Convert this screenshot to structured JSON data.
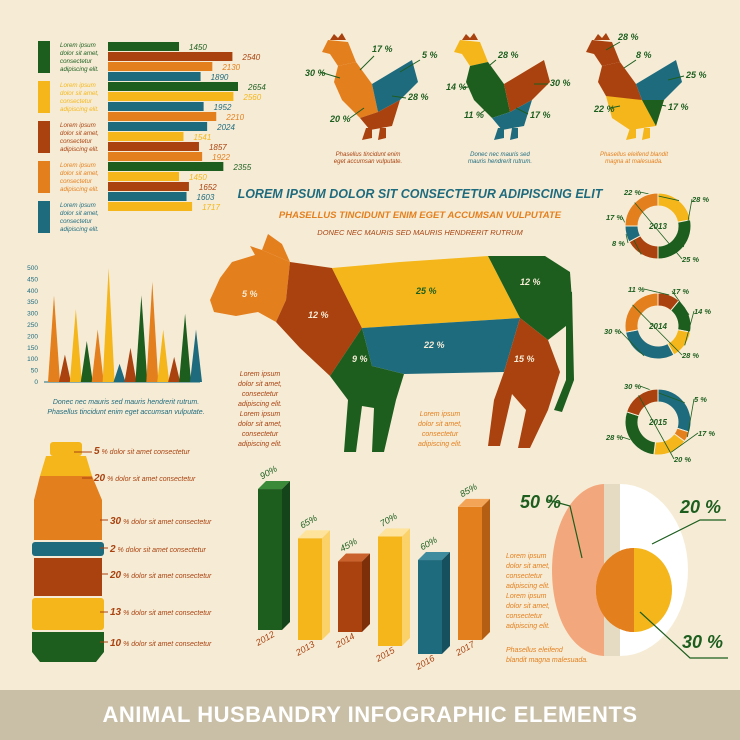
{
  "colors": {
    "green": "#1d5e1f",
    "yellow": "#f4b61b",
    "orange": "#e47f1d",
    "red": "#a9420f",
    "teal": "#1f6b7e",
    "bg": "#f6ecd6",
    "footer": "#c9bfa6"
  },
  "footer_title": "ANIMAL HUSBANDRY INFOGRAPHIC ELEMENTS",
  "headline": {
    "main": "LOREM IPSUM DOLOR SIT CONSECTETUR ADIPISCING ELIT",
    "sub1": "PHASELLUS TINCIDUNT ENIM EGET ACCUMSAN VULPUTATE",
    "sub2": "DONEC NEC MAURIS SED  MAURIS HENDRERIT RUTRUM"
  },
  "bar_groups": {
    "legend_text": [
      "Lorem ipsum",
      "dolor sit amet,",
      "consectetur",
      "adipiscing elit."
    ],
    "groups": [
      {
        "color": "green",
        "bars": [
          {
            "value": 1450,
            "color": "green"
          },
          {
            "value": 2540,
            "color": "red"
          },
          {
            "value": 2130,
            "color": "orange"
          },
          {
            "value": 1890,
            "color": "teal"
          }
        ]
      },
      {
        "color": "yellow",
        "bars": [
          {
            "value": 2654,
            "color": "green"
          },
          {
            "value": 2560,
            "color": "yellow"
          },
          {
            "value": 1952,
            "color": "teal"
          },
          {
            "value": 2210,
            "color": "orange"
          }
        ]
      },
      {
        "color": "red",
        "bars": [
          {
            "value": 2024,
            "color": "teal"
          },
          {
            "value": 1541,
            "color": "yellow"
          },
          {
            "value": 1857,
            "color": "red"
          },
          {
            "value": 1922,
            "color": "orange"
          }
        ]
      },
      {
        "color": "orange",
        "bars": [
          {
            "value": 2355,
            "color": "green"
          },
          {
            "value": 1450,
            "color": "yellow"
          },
          {
            "value": 1652,
            "color": "red"
          },
          {
            "value": 1603,
            "color": "teal"
          }
        ]
      },
      {
        "color": "teal",
        "bars": [
          {
            "value": 1717,
            "color": "yellow"
          }
        ]
      }
    ]
  },
  "chickens": [
    {
      "labels": [
        "30 %",
        "17 %",
        "5 %",
        "28 %",
        "20 %"
      ],
      "caption": [
        "Phasellus tincidunt enim",
        "eget accumsan vulputate."
      ]
    },
    {
      "labels": [
        "28 %",
        "14 %",
        "30 %",
        "11 %",
        "17 %"
      ],
      "caption": [
        "Donec nec mauris sed",
        "mauris hendrerit rutrum."
      ]
    },
    {
      "labels": [
        "28 %",
        "8 %",
        "25 %",
        "22 %",
        "17 %"
      ],
      "caption": [
        "Phasellus eleifend blandit",
        "magna at malesuada."
      ]
    }
  ],
  "spikes": {
    "y_ticks": [
      "500",
      "450",
      "400",
      "350",
      "300",
      "250",
      "200",
      "150",
      "100",
      "50",
      "0"
    ],
    "values": [
      380,
      120,
      320,
      180,
      230,
      500,
      80,
      150,
      380,
      440,
      230,
      110,
      300,
      230
    ],
    "colors": [
      "orange",
      "red",
      "yellow",
      "green",
      "orange",
      "yellow",
      "teal",
      "red",
      "green",
      "orange",
      "yellow",
      "red",
      "green",
      "teal"
    ],
    "caption": [
      "Donec nec mauris sed mauris hendrerit rutrum.",
      "Phasellus tincidunt enim eget accumsan vulputate."
    ]
  },
  "cow": {
    "labels": [
      "5 %",
      "12 %",
      "25 %",
      "12 %",
      "22 %",
      "9 %",
      "15 %"
    ],
    "text_left": [
      "Lorem ipsum",
      "dolor sit amet,",
      "consectetur",
      "adipiscing elit.",
      "Lorem ipsum",
      "dolor sit amet,",
      "consectetur",
      "adipiscing elit."
    ],
    "text_right": [
      "Lorem ipsum",
      "dolor sit amet,",
      "consectetur",
      "adipiscing elit."
    ]
  },
  "donuts": [
    {
      "year": "2013",
      "labels": [
        "22 %",
        "28 %",
        "17 %",
        "8 %",
        "25 %"
      ]
    },
    {
      "year": "2014",
      "labels": [
        "11 %",
        "17 %",
        "14 %",
        "30 %",
        "28 %"
      ]
    },
    {
      "year": "2015",
      "labels": [
        "30 %",
        "5 %",
        "17 %",
        "28 %",
        "20 %"
      ]
    }
  ],
  "bottle": {
    "rows": [
      {
        "pct": "5",
        "text": " % dolor sit amet consectetur",
        "color": "yellow"
      },
      {
        "pct": "20",
        "text": " % dolor sit amet consectetur",
        "color": "yellow"
      },
      {
        "pct": "30",
        "text": " % dolor sit amet consectetur",
        "color": "orange"
      },
      {
        "pct": "2",
        "text": " % dolor sit amet consectetur",
        "color": "teal"
      },
      {
        "pct": "20",
        "text": " % dolor sit amet consectetur",
        "color": "red"
      },
      {
        "pct": "13",
        "text": " % dolor sit amet consectetur",
        "color": "yellow"
      },
      {
        "pct": "10",
        "text": " % dolor sit amet consectetur",
        "color": "green"
      }
    ]
  },
  "columns_3d": {
    "years": [
      "2012",
      "2013",
      "2014",
      "2015",
      "2016",
      "2017"
    ],
    "values": [
      90,
      65,
      45,
      70,
      60,
      85
    ],
    "labels": [
      "90%",
      "65%",
      "45%",
      "70%",
      "60%",
      "85%"
    ],
    "colors": [
      "green",
      "yellow",
      "red",
      "yellow",
      "teal",
      "orange"
    ]
  },
  "egg": {
    "pct_50": "50 %",
    "pct_20": "20 %",
    "pct_30": "30 %",
    "text": [
      "Lorem ipsum",
      "dolor sit amet,",
      "consectetur",
      "adipiscing elit.",
      "Lorem ipsum",
      "dolor sit amet,",
      "consectetur",
      "adipiscing elit."
    ],
    "text2": [
      "Phasellus eleifend",
      "blandit magna malesuada."
    ]
  }
}
